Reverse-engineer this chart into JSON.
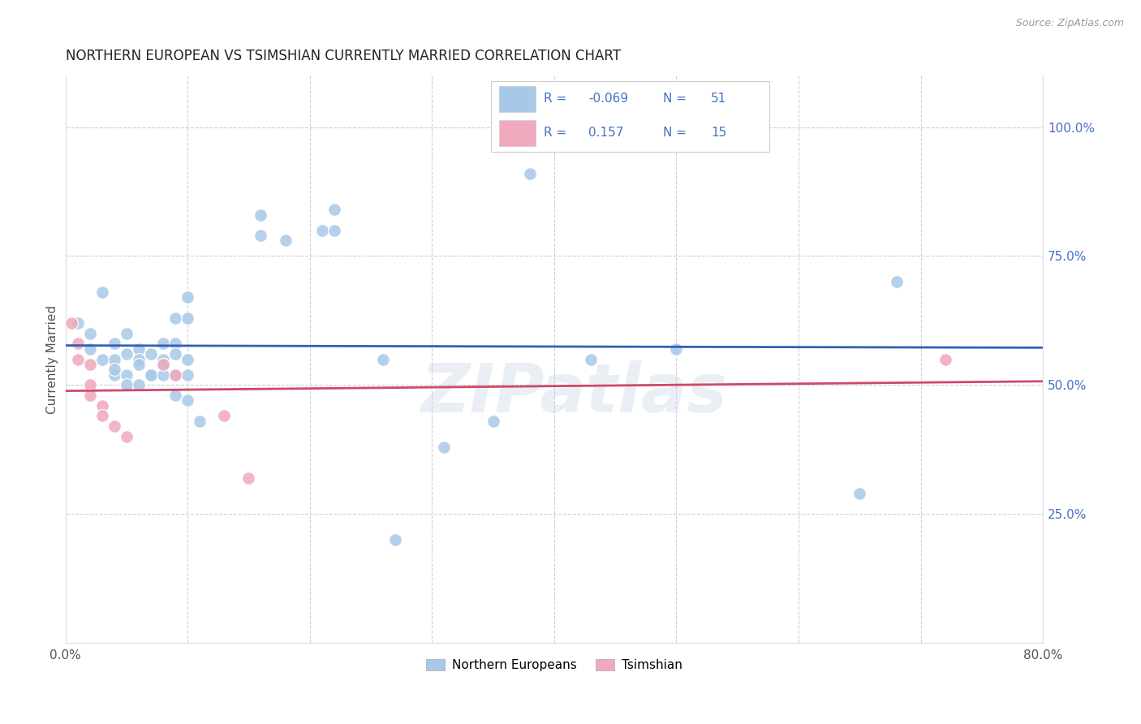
{
  "title": "NORTHERN EUROPEAN VS TSIMSHIAN CURRENTLY MARRIED CORRELATION CHART",
  "source": "Source: ZipAtlas.com",
  "ylabel": "Currently Married",
  "right_ytick_vals": [
    1.0,
    0.75,
    0.5,
    0.25
  ],
  "right_ytick_labels": [
    "100.0%",
    "75.0%",
    "50.0%",
    "25.0%"
  ],
  "xmin": 0.0,
  "xmax": 0.8,
  "ymin": 0.0,
  "ymax": 1.1,
  "watermark": "ZIPatlas",
  "blue_color": "#A8C8E8",
  "pink_color": "#F0A8BC",
  "blue_line_color": "#3060B8",
  "pink_line_color": "#D04868",
  "legend_text_color": "#4472C4",
  "blue_points": [
    [
      0.01,
      0.62
    ],
    [
      0.02,
      0.57
    ],
    [
      0.02,
      0.6
    ],
    [
      0.03,
      0.68
    ],
    [
      0.03,
      0.55
    ],
    [
      0.04,
      0.58
    ],
    [
      0.04,
      0.55
    ],
    [
      0.04,
      0.52
    ],
    [
      0.04,
      0.53
    ],
    [
      0.05,
      0.6
    ],
    [
      0.05,
      0.56
    ],
    [
      0.05,
      0.52
    ],
    [
      0.05,
      0.5
    ],
    [
      0.06,
      0.57
    ],
    [
      0.06,
      0.55
    ],
    [
      0.06,
      0.54
    ],
    [
      0.06,
      0.5
    ],
    [
      0.07,
      0.56
    ],
    [
      0.07,
      0.52
    ],
    [
      0.07,
      0.52
    ],
    [
      0.08,
      0.58
    ],
    [
      0.08,
      0.55
    ],
    [
      0.08,
      0.54
    ],
    [
      0.08,
      0.52
    ],
    [
      0.09,
      0.63
    ],
    [
      0.09,
      0.58
    ],
    [
      0.09,
      0.56
    ],
    [
      0.09,
      0.52
    ],
    [
      0.09,
      0.48
    ],
    [
      0.1,
      0.67
    ],
    [
      0.1,
      0.63
    ],
    [
      0.1,
      0.55
    ],
    [
      0.1,
      0.52
    ],
    [
      0.1,
      0.47
    ],
    [
      0.11,
      0.43
    ],
    [
      0.16,
      0.83
    ],
    [
      0.16,
      0.79
    ],
    [
      0.18,
      0.78
    ],
    [
      0.21,
      0.8
    ],
    [
      0.22,
      0.84
    ],
    [
      0.22,
      0.8
    ],
    [
      0.26,
      0.55
    ],
    [
      0.27,
      0.2
    ],
    [
      0.31,
      0.38
    ],
    [
      0.35,
      0.43
    ],
    [
      0.38,
      0.91
    ],
    [
      0.43,
      0.55
    ],
    [
      0.5,
      0.57
    ],
    [
      0.65,
      0.29
    ],
    [
      0.68,
      0.7
    ]
  ],
  "pink_points": [
    [
      0.005,
      0.62
    ],
    [
      0.01,
      0.58
    ],
    [
      0.01,
      0.55
    ],
    [
      0.02,
      0.54
    ],
    [
      0.02,
      0.5
    ],
    [
      0.02,
      0.48
    ],
    [
      0.03,
      0.46
    ],
    [
      0.03,
      0.44
    ],
    [
      0.04,
      0.42
    ],
    [
      0.05,
      0.4
    ],
    [
      0.08,
      0.54
    ],
    [
      0.09,
      0.52
    ],
    [
      0.13,
      0.44
    ],
    [
      0.15,
      0.32
    ],
    [
      0.72,
      0.55
    ]
  ],
  "background_color": "#ffffff",
  "grid_color": "#D0D0D0",
  "title_fontsize": 12,
  "axis_fontsize": 11,
  "marker_size": 130
}
